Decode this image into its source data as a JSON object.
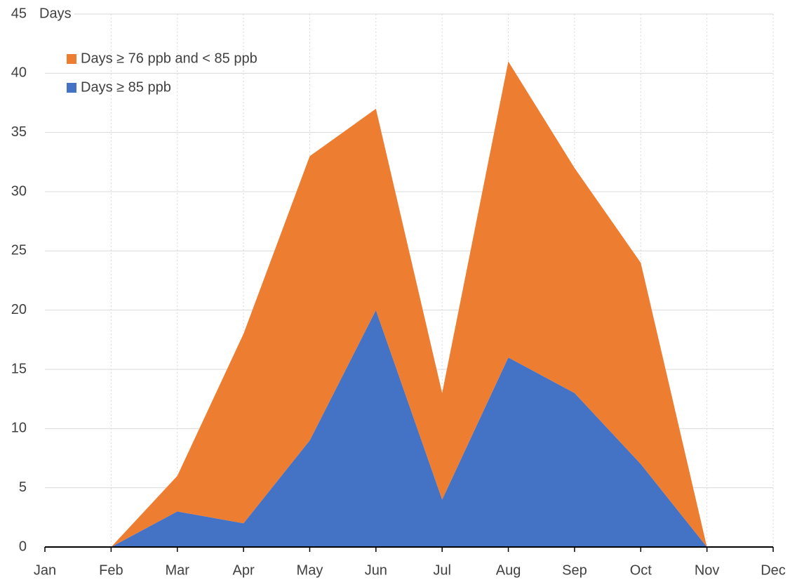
{
  "chart_data": {
    "type": "stacked_area",
    "y_label": "Days",
    "categories": [
      "Jan",
      "Feb",
      "Mar",
      "Apr",
      "May",
      "Jun",
      "Jul",
      "Aug",
      "Sep",
      "Oct",
      "Nov",
      "Dec"
    ],
    "series": [
      {
        "name": "Days ≥  76 ppb and < 85 ppb",
        "color": "#ed7d31",
        "values": [
          null,
          0,
          3,
          16,
          24,
          17,
          9,
          25,
          19,
          17,
          0,
          null
        ]
      },
      {
        "name": "Days ≥ 85 ppb",
        "color": "#4472c4",
        "values": [
          null,
          0,
          3,
          2,
          9,
          20,
          4,
          16,
          13,
          7,
          0,
          null
        ]
      }
    ],
    "ylim": [
      0,
      45
    ],
    "yticks": [
      0,
      5,
      10,
      15,
      20,
      25,
      30,
      35,
      40,
      45
    ],
    "grid": true,
    "legend": "upper left"
  }
}
